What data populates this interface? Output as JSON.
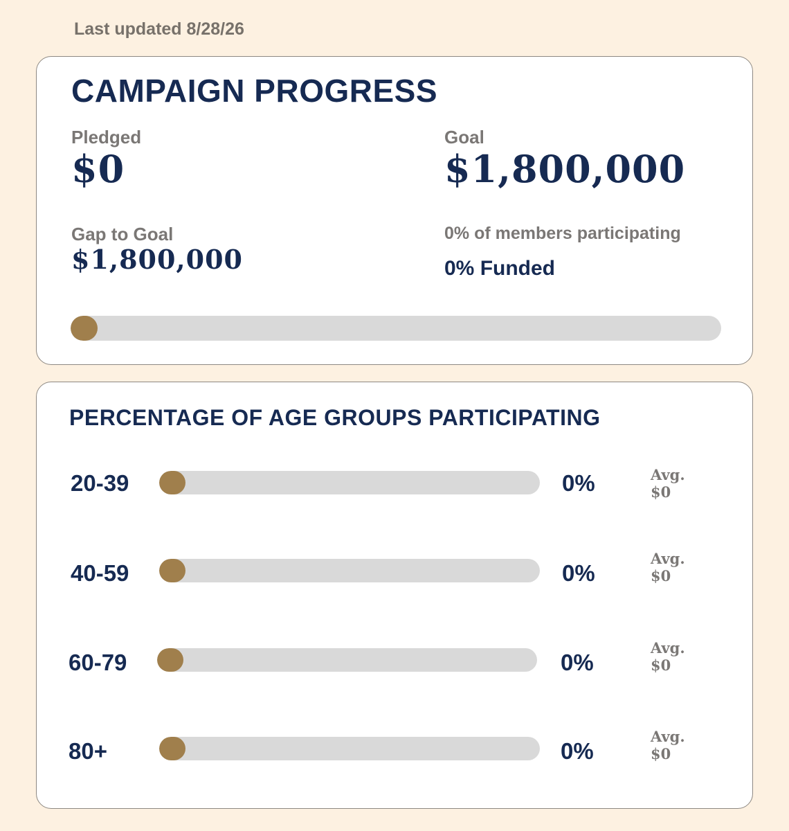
{
  "last_updated": "Last updated 8/28/26",
  "colors": {
    "background": "#fdf1e1",
    "navy": "#162a52",
    "gold": "#a07f4c",
    "track": "#d9d9d9",
    "muted": "#7a7775"
  },
  "campaign": {
    "title": "CAMPAIGN PROGRESS",
    "pledged_label": "Pledged",
    "pledged_value": "$0",
    "goal_label": "Goal",
    "goal_value": "$1,800,000",
    "gap_label": "Gap to Goal",
    "gap_value": "$1,800,000",
    "members_participating": "0% of members participating",
    "funded_text": "0% Funded",
    "progress_percent": 0
  },
  "age_groups": {
    "title": "PERCENTAGE OF AGE GROUPS PARTICIPATING",
    "rows": [
      {
        "range": "20-39",
        "percent_label": "0%",
        "avg_label": "Avg.",
        "avg_value": "$0",
        "progress_percent": 0
      },
      {
        "range": "40-59",
        "percent_label": "0%",
        "avg_label": "Avg.",
        "avg_value": "$0",
        "progress_percent": 0
      },
      {
        "range": "60-79",
        "percent_label": "0%",
        "avg_label": "Avg.",
        "avg_value": "$0",
        "progress_percent": 0
      },
      {
        "range": "80+",
        "percent_label": "0%",
        "avg_label": "Avg.",
        "avg_value": "$0",
        "progress_percent": 0
      }
    ]
  }
}
